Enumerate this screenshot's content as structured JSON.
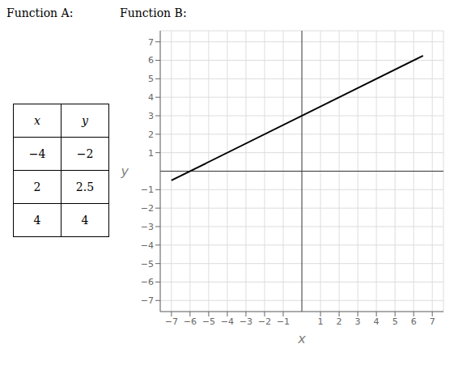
{
  "chart_data": [
    {
      "type": "table",
      "title": "Function A:",
      "columns": [
        "x",
        "y"
      ],
      "rows": [
        [
          {
            "value": -4,
            "label": "−4"
          },
          {
            "value": -2,
            "label": "−2"
          }
        ],
        [
          2,
          2.5
        ],
        [
          4,
          4
        ]
      ]
    },
    {
      "type": "line",
      "title": "Function B:",
      "x": [
        -7.0,
        6.5
      ],
      "values": [
        -0.5,
        6.25
      ],
      "color": "#000000",
      "xlabel": "x",
      "ylabel": "y",
      "xlim": [
        -7.6,
        7.6
      ],
      "ylim": [
        -7.6,
        7.6
      ],
      "xticks": [
        {
          "value": -7,
          "label": "−7"
        },
        {
          "value": -6,
          "label": "−6"
        },
        {
          "value": -5,
          "label": "−5"
        },
        {
          "value": -4,
          "label": "−4"
        },
        {
          "value": -3,
          "label": "−3"
        },
        {
          "value": -2,
          "label": "−2"
        },
        {
          "value": -1,
          "label": "−1"
        },
        1,
        2,
        3,
        4,
        5,
        6,
        7
      ],
      "yticks": [
        {
          "value": -7,
          "label": "−7"
        },
        {
          "value": -6,
          "label": "−6"
        },
        {
          "value": -5,
          "label": "−5"
        },
        {
          "value": -4,
          "label": "−4"
        },
        {
          "value": -3,
          "label": "−3"
        },
        {
          "value": -2,
          "label": "−2"
        },
        {
          "value": -1,
          "label": "−1"
        },
        1,
        2,
        3,
        4,
        5,
        6,
        7
      ],
      "grid": true
    }
  ]
}
